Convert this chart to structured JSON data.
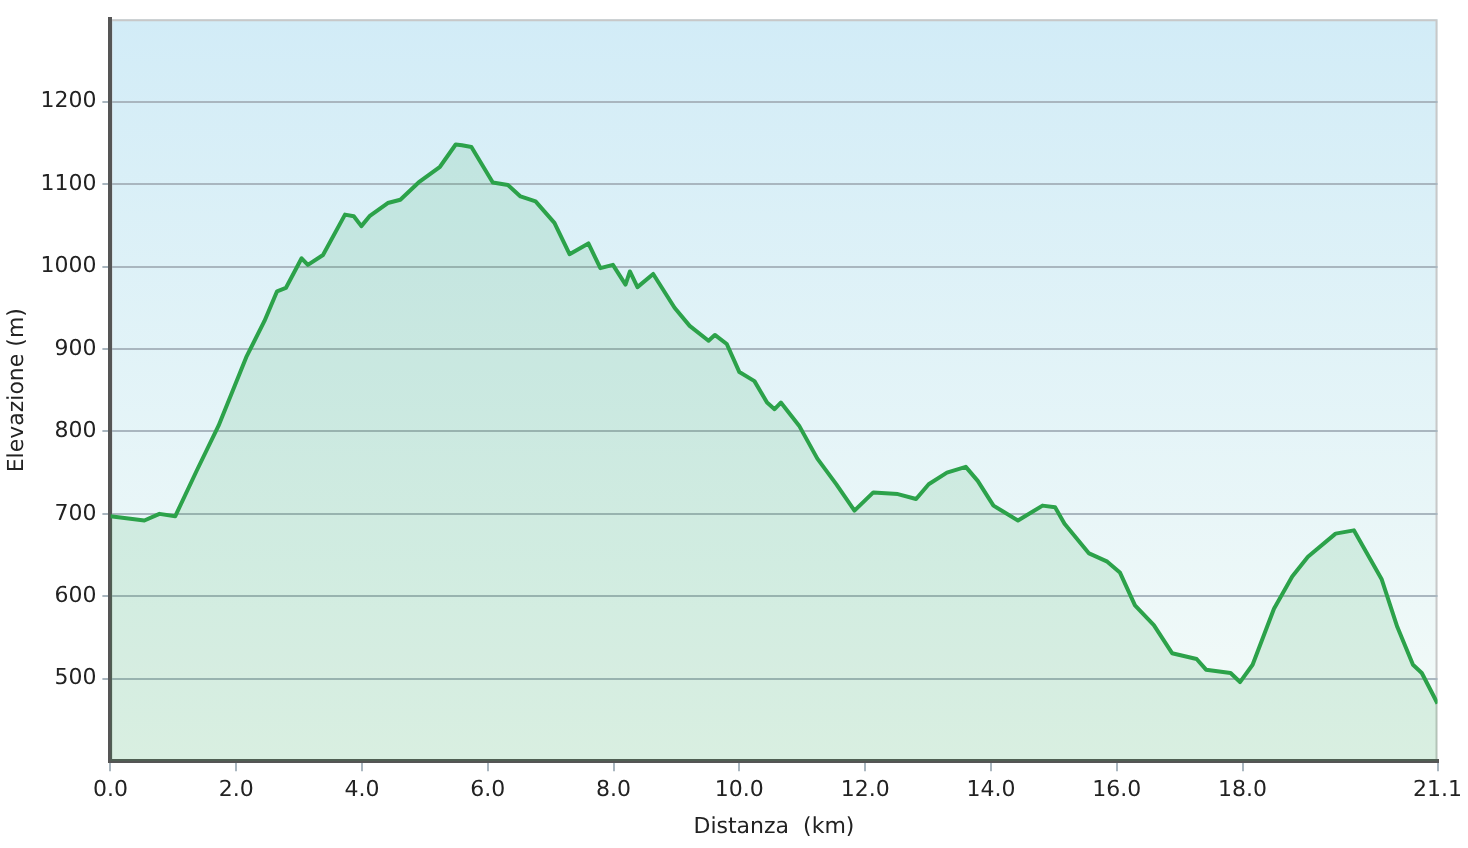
{
  "chart_data": {
    "type": "area",
    "xlabel": "Distanza  (km)",
    "ylabel": "Elevazione (m)",
    "xlim": [
      0,
      21.1
    ],
    "ylim": [
      400,
      1300
    ],
    "xticks": [
      {
        "value": 0,
        "label": "0.0"
      },
      {
        "value": 2,
        "label": "2.0"
      },
      {
        "value": 4,
        "label": "4.0"
      },
      {
        "value": 6,
        "label": "6.0"
      },
      {
        "value": 8,
        "label": "8.0"
      },
      {
        "value": 10,
        "label": "10.0"
      },
      {
        "value": 12,
        "label": "12.0"
      },
      {
        "value": 14,
        "label": "14.0"
      },
      {
        "value": 16,
        "label": "16.0"
      },
      {
        "value": 18,
        "label": "18.0"
      },
      {
        "value": 21.1,
        "label": "21.1"
      }
    ],
    "yticks": [
      500,
      600,
      700,
      800,
      900,
      1000,
      1100,
      1200
    ],
    "grid": "y",
    "legend": false,
    "series": [
      {
        "color": "#2ca24a",
        "x": [
          0,
          0.54,
          0.78,
          1.03,
          1.37,
          1.72,
          2.16,
          2.45,
          2.65,
          2.79,
          3.04,
          3.14,
          3.38,
          3.73,
          3.87,
          3.99,
          4.12,
          4.41,
          4.61,
          4.9,
          5.24,
          5.49,
          5.59,
          5.74,
          6.08,
          6.32,
          6.52,
          6.76,
          7.06,
          7.3,
          7.6,
          7.79,
          7.99,
          8.19,
          8.26,
          8.38,
          8.63,
          8.97,
          9.21,
          9.51,
          9.61,
          9.8,
          10,
          10.24,
          10.44,
          10.56,
          10.66,
          10.95,
          11.24,
          11.54,
          11.83,
          12.13,
          12.52,
          12.81,
          13.01,
          13.3,
          13.6,
          13.79,
          14.04,
          14.43,
          14.82,
          15.02,
          15.17,
          15.56,
          15.85,
          16.05,
          16.29,
          16.59,
          16.88,
          17.27,
          17.42,
          17.81,
          17.96,
          18.16,
          18.5,
          18.79,
          19.04,
          19.48,
          19.77,
          20.21,
          20.46,
          20.71,
          20.85,
          21.1
        ],
        "values": [
          697,
          692,
          700,
          697,
          752,
          807,
          890,
          934,
          970,
          974,
          1010,
          1002,
          1014,
          1063,
          1061,
          1049,
          1061,
          1077,
          1081,
          1102,
          1121,
          1148,
          1147,
          1145,
          1102,
          1099,
          1085,
          1079,
          1053,
          1015,
          1028,
          998,
          1002,
          978,
          994,
          975,
          991,
          950,
          928,
          910,
          917,
          906,
          872,
          861,
          835,
          827,
          835,
          807,
          767,
          736,
          704,
          726,
          724,
          718,
          736,
          750,
          757,
          740,
          710,
          692,
          710,
          708,
          688,
          652,
          642,
          629,
          589,
          565,
          531,
          524,
          511,
          507,
          496,
          517,
          585,
          624,
          648,
          676,
          680,
          621,
          563,
          517,
          507,
          470
        ]
      }
    ]
  }
}
